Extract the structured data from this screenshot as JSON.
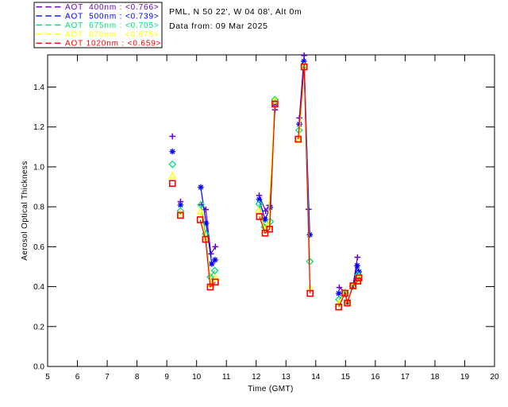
{
  "header": {
    "line1": "PML, N 50 22', W 04 08', Alt 0m",
    "line2": "Data from: 09 Mar 2025"
  },
  "colors": {
    "background": "#ffffff",
    "axis": "#000000",
    "text": "#000000"
  },
  "chart_data": {
    "type": "scatter",
    "xlabel": "Time (GMT)",
    "ylabel": "Aerosol Optical Thickness",
    "xlim": [
      5,
      20
    ],
    "ylim": [
      0,
      1.562
    ],
    "xticks": [
      5,
      6,
      7,
      8,
      9,
      10,
      11,
      12,
      13,
      14,
      15,
      16,
      17,
      18,
      19,
      20
    ],
    "yticks": [
      "0.0",
      "0.2",
      "0.4",
      "0.6",
      "0.8",
      "1.0",
      "1.2",
      "1.4"
    ],
    "grid": false,
    "legend": {
      "position": "top-left",
      "entries": [
        {
          "label": "AOT  400nm : <0.766>",
          "color": "#6600cc"
        },
        {
          "label": "AOT  500nm : <0.739>",
          "color": "#0000ff"
        },
        {
          "label": "AOT  675nm : <0.705>",
          "color": "#00df77"
        },
        {
          "label": "AOT  870nm : <0.675>",
          "color": "#ffff00"
        },
        {
          "label": "AOT 1020nm : <0.659>",
          "color": "#ff0000"
        }
      ]
    },
    "series": [
      {
        "name": "AOT 400nm",
        "mean": "<0.766>",
        "color": "#6600cc",
        "marker": "plus",
        "runs": [
          [
            [
              9.19,
              1.153
            ]
          ],
          [
            [
              9.46,
              0.826
            ]
          ],
          [
            [
              10.16,
              0.81
            ],
            [
              10.31,
              0.786
            ],
            [
              10.48,
              0.564
            ],
            [
              10.63,
              0.6
            ]
          ],
          [
            [
              12.1,
              0.857
            ],
            [
              12.32,
              0.779
            ],
            [
              12.44,
              0.807
            ],
            [
              12.63,
              1.286
            ]
          ],
          [
            [
              13.45,
              1.245
            ],
            [
              13.61,
              1.558
            ],
            [
              13.76,
              0.787
            ]
          ],
          [
            [
              14.79,
              0.396
            ],
            [
              14.98,
              0.373
            ],
            [
              15.06,
              0.323
            ],
            [
              15.25,
              0.406
            ],
            [
              15.4,
              0.547
            ]
          ]
        ]
      },
      {
        "name": "AOT 500nm",
        "mean": "<0.739>",
        "color": "#0000ff",
        "marker": "asterisk",
        "runs": [
          [
            [
              9.19,
              1.077
            ]
          ],
          [
            [
              9.46,
              0.809
            ]
          ],
          [
            [
              10.14,
              0.898
            ],
            [
              10.32,
              0.717
            ],
            [
              10.51,
              0.514
            ],
            [
              10.62,
              0.534
            ]
          ],
          [
            [
              12.1,
              0.837
            ],
            [
              12.3,
              0.736
            ],
            [
              12.47,
              0.797
            ],
            [
              12.63,
              1.317
            ]
          ],
          [
            [
              13.45,
              1.214
            ],
            [
              13.6,
              1.529
            ],
            [
              13.8,
              0.66
            ]
          ],
          [
            [
              14.77,
              0.366
            ],
            [
              14.98,
              0.371
            ],
            [
              15.06,
              0.321
            ],
            [
              15.25,
              0.404
            ],
            [
              15.39,
              0.505
            ],
            [
              15.45,
              0.474
            ]
          ]
        ]
      },
      {
        "name": "AOT 675nm",
        "mean": "<0.705>",
        "color": "#00df77",
        "marker": "diamond",
        "runs": [
          [
            [
              9.19,
              1.013
            ]
          ],
          [
            [
              9.46,
              0.779
            ]
          ],
          [
            [
              10.15,
              0.81
            ],
            [
              10.3,
              0.665
            ],
            [
              10.46,
              0.448
            ],
            [
              10.61,
              0.48
            ]
          ],
          [
            [
              12.1,
              0.814
            ],
            [
              12.28,
              0.698
            ],
            [
              12.47,
              0.726
            ],
            [
              12.63,
              1.337
            ]
          ],
          [
            [
              13.44,
              1.184
            ],
            [
              13.61,
              1.507
            ],
            [
              13.8,
              0.526
            ]
          ],
          [
            [
              14.78,
              0.335
            ],
            [
              14.98,
              0.369
            ],
            [
              15.06,
              0.32
            ],
            [
              15.24,
              0.402
            ],
            [
              15.42,
              0.458
            ]
          ]
        ]
      },
      {
        "name": "AOT 870nm",
        "mean": "<0.675>",
        "color": "#ffff00",
        "marker": "triangle",
        "runs": [
          [
            [
              9.19,
              0.956
            ]
          ],
          [
            [
              9.46,
              0.766
            ]
          ],
          [
            [
              10.13,
              0.776
            ],
            [
              10.3,
              0.645
            ],
            [
              10.48,
              0.413
            ],
            [
              10.64,
              0.445
            ]
          ],
          [
            [
              12.08,
              0.782
            ],
            [
              12.29,
              0.684
            ],
            [
              12.4,
              0.706
            ],
            [
              12.63,
              1.331
            ]
          ],
          [
            [
              13.44,
              1.134
            ],
            [
              13.61,
              1.503
            ],
            [
              13.81,
              0.392
            ]
          ],
          [
            [
              14.78,
              0.317
            ],
            [
              14.98,
              0.368
            ],
            [
              15.06,
              0.319
            ],
            [
              15.24,
              0.401
            ],
            [
              15.41,
              0.43
            ],
            [
              15.45,
              0.447
            ]
          ]
        ]
      },
      {
        "name": "AOT 1020nm",
        "mean": "<0.659>",
        "color": "#ff0000",
        "marker": "square",
        "runs": [
          [
            [
              9.19,
              0.917
            ]
          ],
          [
            [
              9.46,
              0.757
            ]
          ],
          [
            [
              10.12,
              0.735
            ],
            [
              10.3,
              0.637
            ],
            [
              10.46,
              0.398
            ],
            [
              10.63,
              0.423
            ]
          ],
          [
            [
              12.11,
              0.751
            ],
            [
              12.3,
              0.668
            ],
            [
              12.45,
              0.688
            ],
            [
              12.63,
              1.315
            ]
          ],
          [
            [
              13.41,
              1.139
            ],
            [
              13.61,
              1.501
            ],
            [
              13.81,
              0.366
            ]
          ],
          [
            [
              14.77,
              0.298
            ],
            [
              14.98,
              0.367
            ],
            [
              15.06,
              0.318
            ],
            [
              15.25,
              0.404
            ],
            [
              15.41,
              0.428
            ],
            [
              15.45,
              0.444
            ]
          ]
        ]
      }
    ]
  }
}
